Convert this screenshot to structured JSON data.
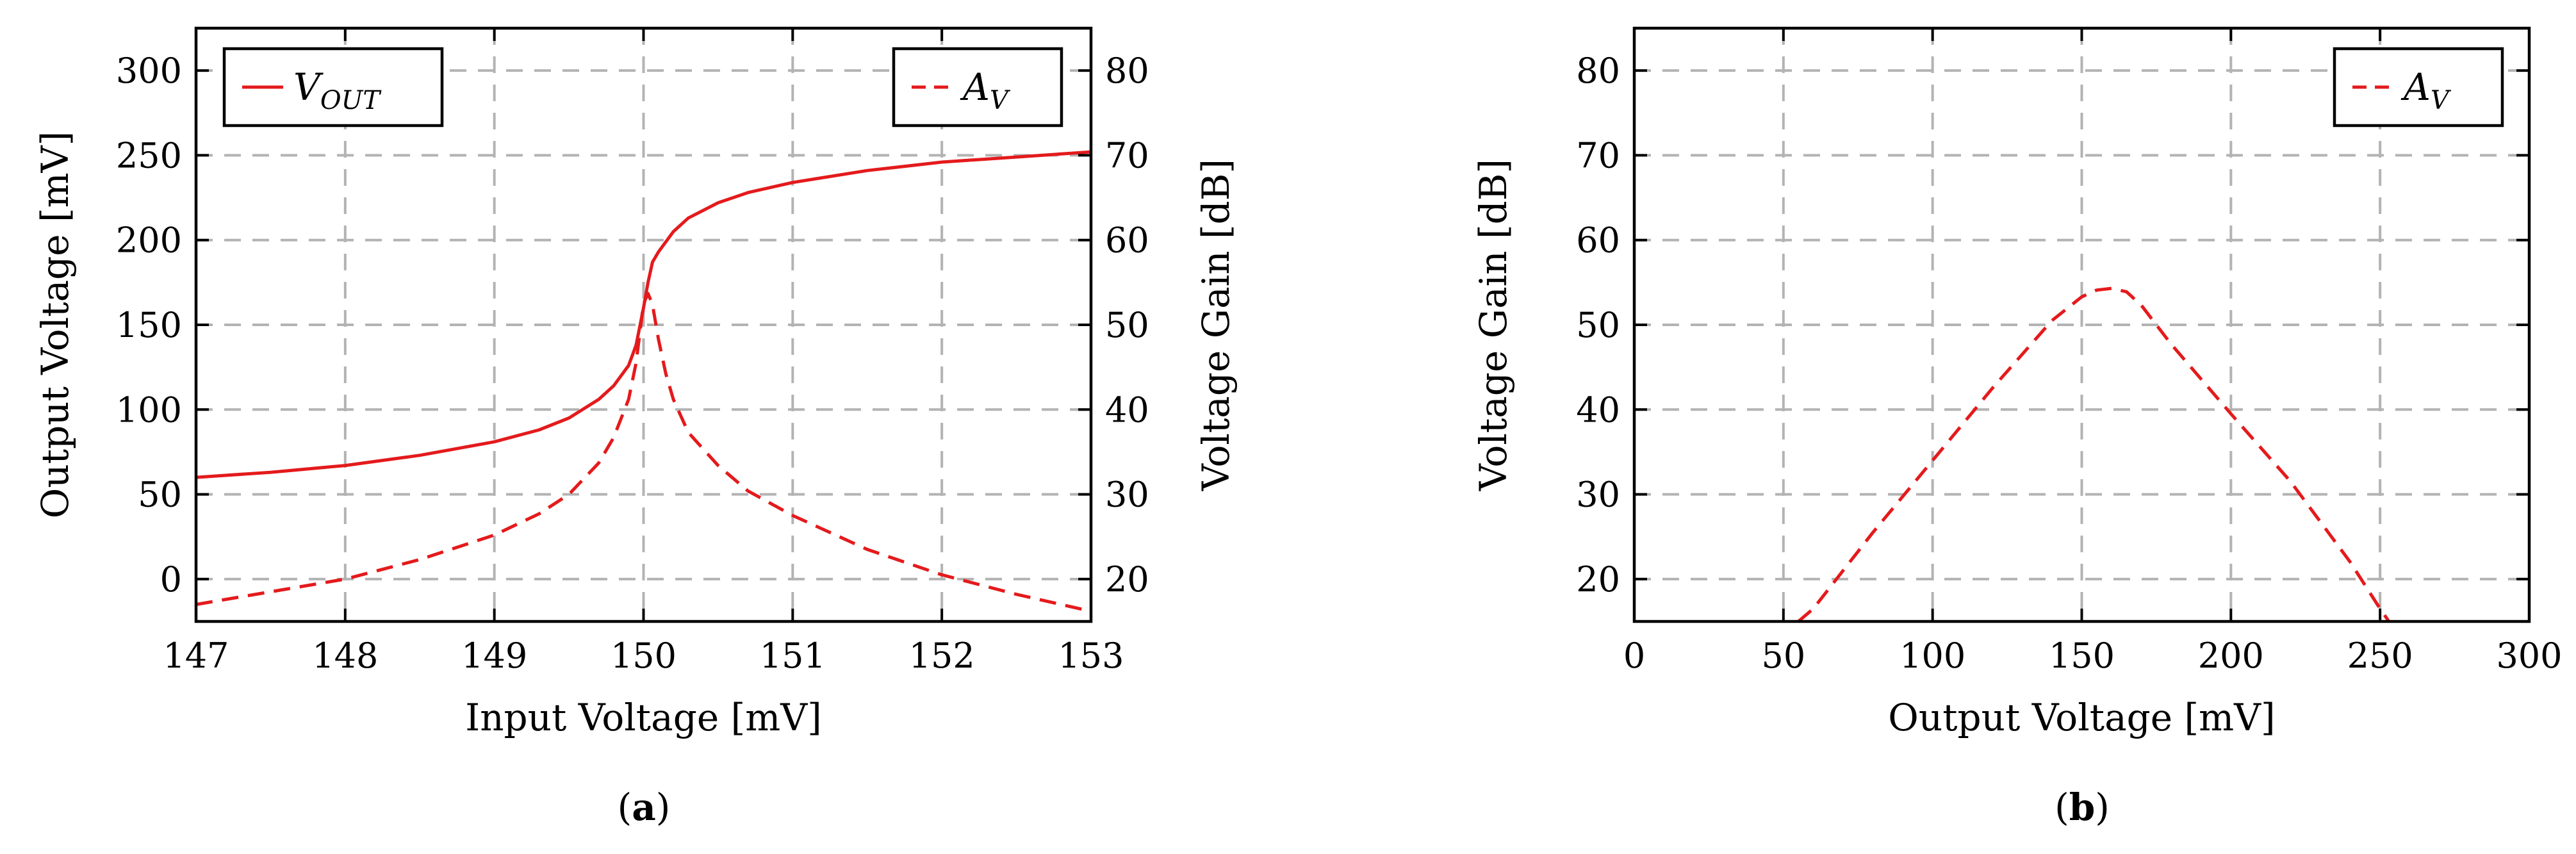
{
  "chart_data": [
    {
      "type": "line",
      "panel_label": "a",
      "xlabel": "Input Voltage [mV]",
      "ylabel": "Output Voltage [mV]",
      "y2label": "Voltage Gain [dB]",
      "xlim": [
        147,
        153
      ],
      "ylim": [
        -25,
        325
      ],
      "y2lim": [
        15,
        85
      ],
      "xticks": [
        147,
        148,
        149,
        150,
        151,
        152,
        153
      ],
      "yticks": [
        0,
        50,
        100,
        150,
        200,
        250,
        300
      ],
      "y2ticks": [
        20,
        30,
        40,
        50,
        60,
        70,
        80
      ],
      "grid": true,
      "series": [
        {
          "name": "V",
          "name_sub": "OUT",
          "axis": "left",
          "style": "solid",
          "color": "#e41a1c",
          "legend_position": "top-left",
          "x": [
            147,
            147.5,
            148,
            148.5,
            149,
            149.3,
            149.5,
            149.7,
            149.8,
            149.9,
            149.95,
            150.0,
            150.03,
            150.06,
            150.1,
            150.2,
            150.3,
            150.5,
            150.7,
            151,
            151.5,
            152,
            152.5,
            153
          ],
          "y": [
            60,
            63,
            67,
            73,
            81,
            88,
            95,
            106,
            114,
            126,
            138,
            160,
            175,
            187,
            193,
            205,
            213,
            222,
            228,
            234,
            241,
            246,
            249,
            252
          ]
        },
        {
          "name": "A",
          "name_sub": "V",
          "axis": "right",
          "style": "dashed",
          "color": "#e41a1c",
          "legend_position": "top-right",
          "x": [
            147,
            147.5,
            148,
            148.5,
            149,
            149.3,
            149.5,
            149.7,
            149.8,
            149.9,
            149.95,
            150.0,
            150.03,
            150.06,
            150.1,
            150.15,
            150.2,
            150.3,
            150.5,
            150.7,
            151,
            151.5,
            152,
            152.5,
            153
          ],
          "y": [
            17,
            18.5,
            20,
            22.3,
            25.2,
            27.7,
            30,
            33.7,
            36.7,
            41.2,
            45.5,
            52.5,
            53.7,
            52.4,
            48.3,
            44.2,
            41.2,
            37.3,
            33.4,
            30.4,
            27.5,
            23.5,
            20.5,
            18.2,
            16.2
          ]
        }
      ]
    },
    {
      "type": "line",
      "panel_label": "b",
      "xlabel": "Output Voltage [mV]",
      "ylabel": "Voltage Gain [dB]",
      "xlim": [
        0,
        300
      ],
      "ylim": [
        15,
        85
      ],
      "xticks": [
        0,
        50,
        100,
        150,
        200,
        250,
        300
      ],
      "yticks": [
        20,
        30,
        40,
        50,
        60,
        70,
        80
      ],
      "grid": true,
      "series": [
        {
          "name": "A",
          "name_sub": "V",
          "style": "dashed",
          "color": "#e41a1c",
          "legend_position": "top-right",
          "x": [
            55,
            60,
            80,
            100,
            120,
            140,
            150,
            155,
            160,
            165,
            170,
            180,
            200,
            220,
            240,
            250,
            253
          ],
          "y": [
            15,
            16.5,
            25.5,
            34,
            42.5,
            50.5,
            53.3,
            54.1,
            54.3,
            53.9,
            52.3,
            47.7,
            39.5,
            31.5,
            22,
            16.5,
            15
          ]
        }
      ]
    }
  ]
}
